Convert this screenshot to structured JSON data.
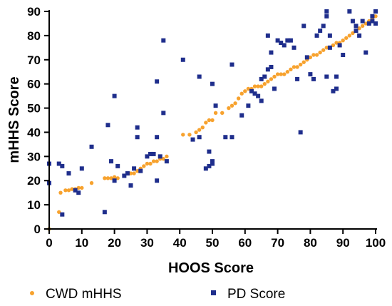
{
  "chart_data": {
    "type": "scatter",
    "title": "",
    "xlabel": "HOOS Score",
    "ylabel": "mHHS Score",
    "xlim": [
      0,
      100
    ],
    "ylim": [
      0,
      90
    ],
    "xticks": [
      0,
      10,
      20,
      30,
      40,
      50,
      60,
      70,
      80,
      90,
      100
    ],
    "yticks": [
      0,
      10,
      20,
      30,
      40,
      50,
      60,
      70,
      80,
      90
    ],
    "grid": false,
    "legend_position": "bottom",
    "series": [
      {
        "name": "CWD mHHS",
        "color": "#F7A22E",
        "marker": "circle",
        "points": [
          [
            0,
            0
          ],
          [
            3,
            7
          ],
          [
            3.5,
            15
          ],
          [
            5,
            16
          ],
          [
            6,
            16
          ],
          [
            7,
            16.5
          ],
          [
            8,
            16.5
          ],
          [
            9,
            17
          ],
          [
            10,
            17
          ],
          [
            13,
            19
          ],
          [
            17,
            21
          ],
          [
            18,
            21
          ],
          [
            19,
            21
          ],
          [
            20,
            21.5
          ],
          [
            21,
            21
          ],
          [
            23,
            22
          ],
          [
            24,
            23
          ],
          [
            25,
            23
          ],
          [
            26,
            23
          ],
          [
            27,
            24
          ],
          [
            28,
            25
          ],
          [
            29,
            26
          ],
          [
            30,
            27
          ],
          [
            31,
            27
          ],
          [
            32,
            28
          ],
          [
            33,
            28
          ],
          [
            34,
            29
          ],
          [
            35,
            29
          ],
          [
            36,
            30
          ],
          [
            41,
            39
          ],
          [
            43,
            39
          ],
          [
            45,
            40
          ],
          [
            46,
            41
          ],
          [
            47,
            42
          ],
          [
            48,
            44
          ],
          [
            49,
            45
          ],
          [
            50,
            45
          ],
          [
            51,
            48
          ],
          [
            53,
            48
          ],
          [
            55,
            50
          ],
          [
            56,
            51
          ],
          [
            57,
            52
          ],
          [
            58,
            54
          ],
          [
            59,
            56
          ],
          [
            60,
            57
          ],
          [
            61,
            58
          ],
          [
            62,
            58
          ],
          [
            63,
            59
          ],
          [
            64,
            59
          ],
          [
            65,
            59
          ],
          [
            66,
            60
          ],
          [
            67,
            61
          ],
          [
            68,
            62
          ],
          [
            69,
            63
          ],
          [
            70,
            64
          ],
          [
            71,
            64
          ],
          [
            72,
            64
          ],
          [
            73,
            65
          ],
          [
            74,
            66
          ],
          [
            75,
            67
          ],
          [
            76,
            67
          ],
          [
            77,
            68
          ],
          [
            78,
            69
          ],
          [
            79,
            70
          ],
          [
            80,
            71
          ],
          [
            81,
            72
          ],
          [
            82,
            72
          ],
          [
            83,
            73
          ],
          [
            84,
            74
          ],
          [
            85,
            75
          ],
          [
            86,
            75
          ],
          [
            87,
            76
          ],
          [
            88,
            77
          ],
          [
            89,
            77
          ],
          [
            90,
            78
          ],
          [
            91,
            79
          ],
          [
            92,
            80
          ],
          [
            93,
            81
          ],
          [
            94,
            82
          ],
          [
            95,
            83
          ],
          [
            96,
            84
          ],
          [
            97,
            85
          ],
          [
            98,
            86
          ],
          [
            99,
            87
          ],
          [
            100,
            88
          ],
          [
            100,
            90
          ]
        ]
      },
      {
        "name": "PD Score",
        "color": "#1F2E8C",
        "marker": "square",
        "points": [
          [
            0,
            27
          ],
          [
            0,
            19
          ],
          [
            3,
            27
          ],
          [
            4,
            26
          ],
          [
            4,
            6
          ],
          [
            6,
            23
          ],
          [
            8,
            16
          ],
          [
            9,
            15
          ],
          [
            10,
            25
          ],
          [
            13,
            34
          ],
          [
            17,
            7
          ],
          [
            18,
            43
          ],
          [
            19,
            28
          ],
          [
            20,
            55
          ],
          [
            20,
            20
          ],
          [
            21,
            26
          ],
          [
            23,
            22
          ],
          [
            24,
            23
          ],
          [
            25,
            18
          ],
          [
            26,
            25
          ],
          [
            27,
            42
          ],
          [
            27,
            38
          ],
          [
            28,
            24
          ],
          [
            30,
            30
          ],
          [
            31,
            31
          ],
          [
            32,
            31
          ],
          [
            33,
            61
          ],
          [
            33,
            38
          ],
          [
            33,
            20
          ],
          [
            34,
            30
          ],
          [
            35,
            78
          ],
          [
            35,
            48
          ],
          [
            36,
            28
          ],
          [
            41,
            70
          ],
          [
            44,
            37
          ],
          [
            46,
            63
          ],
          [
            46,
            38
          ],
          [
            48,
            25
          ],
          [
            49,
            26
          ],
          [
            49,
            32
          ],
          [
            50,
            60
          ],
          [
            50,
            28
          ],
          [
            50,
            27
          ],
          [
            51,
            51
          ],
          [
            54,
            38
          ],
          [
            56,
            68
          ],
          [
            56,
            38
          ],
          [
            59,
            47
          ],
          [
            61,
            51
          ],
          [
            62,
            57
          ],
          [
            63,
            56
          ],
          [
            64,
            55
          ],
          [
            65,
            62
          ],
          [
            65,
            53
          ],
          [
            66,
            63
          ],
          [
            67,
            80
          ],
          [
            67,
            66
          ],
          [
            68,
            73
          ],
          [
            68,
            67
          ],
          [
            69,
            58
          ],
          [
            70,
            78
          ],
          [
            71,
            77
          ],
          [
            72,
            76
          ],
          [
            73,
            78
          ],
          [
            74,
            78
          ],
          [
            75,
            75
          ],
          [
            76,
            62
          ],
          [
            77,
            40
          ],
          [
            78,
            84
          ],
          [
            79,
            71
          ],
          [
            80,
            64
          ],
          [
            81,
            62
          ],
          [
            82,
            80
          ],
          [
            83,
            82
          ],
          [
            84,
            84
          ],
          [
            85,
            90
          ],
          [
            85,
            88
          ],
          [
            85,
            63
          ],
          [
            86,
            80
          ],
          [
            86,
            75
          ],
          [
            87,
            57
          ],
          [
            88,
            63
          ],
          [
            88,
            58
          ],
          [
            89,
            76
          ],
          [
            90,
            72
          ],
          [
            92,
            90
          ],
          [
            93,
            86
          ],
          [
            94,
            82
          ],
          [
            94,
            84
          ],
          [
            95,
            80
          ],
          [
            96,
            86
          ],
          [
            97,
            73
          ],
          [
            98,
            85
          ],
          [
            99,
            86
          ],
          [
            99,
            88
          ],
          [
            100,
            90
          ],
          [
            100,
            85
          ]
        ]
      }
    ]
  }
}
